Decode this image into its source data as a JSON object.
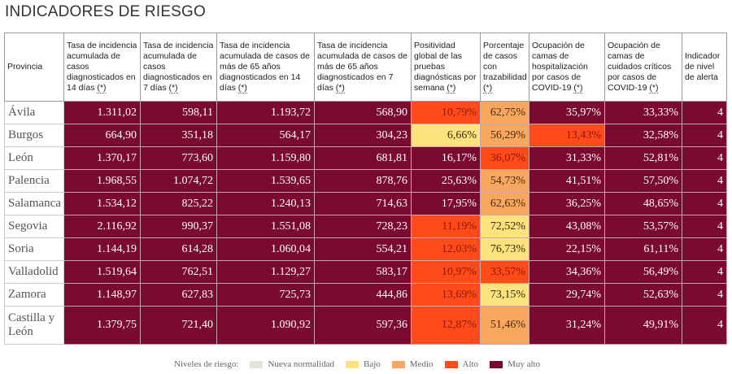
{
  "title": "INDICADORES DE RIESGO",
  "colors": {
    "nueva_normalidad": "#dfe6da",
    "bajo": "#fde27d",
    "medio": "#f8a85e",
    "alto": "#ff4a1a",
    "muy_alto": "#7b0a30"
  },
  "headers": [
    {
      "text": "Provincia",
      "ast": ""
    },
    {
      "text": "Tasa de incidencia acumulada de casos diagnosticados en 14 días ",
      "ast": "(*)"
    },
    {
      "text": "Tasa de incidencia acumulada de casos diagnosticados en 7 días ",
      "ast": "(*)"
    },
    {
      "text": "Tasa de incidencia acumulada de casos de más de 65 años diagnosticados en 14 días ",
      "ast": "(*)"
    },
    {
      "text": "Tasa de incidencia acumulada de casos de más de 65 años diagnosticados en 7 días ",
      "ast": "(*)"
    },
    {
      "text": "Positividad global de las pruebas diagnósticas por semana ",
      "ast": "(*)"
    },
    {
      "text": "Porcentaje de casos con trazabilidad ",
      "ast": "(*)"
    },
    {
      "text": "Ocupación de camas de hospitalización por casos de COVID-19 ",
      "ast": "(*)"
    },
    {
      "text": "Ocupación de camas de cuidados críticos por casos de COVID-19 ",
      "ast": "(*)"
    },
    {
      "text": "Indicador de nivel de alerta",
      "ast": ""
    }
  ],
  "rows": [
    {
      "provincia": "Ávila",
      "values": [
        "1.311,02",
        "598,11",
        "1.193,72",
        "568,90",
        "10,79%",
        "62,75%",
        "35,97%",
        "33,33%",
        "4"
      ],
      "levels": [
        4,
        4,
        4,
        4,
        3,
        2,
        4,
        4,
        4
      ]
    },
    {
      "provincia": "Burgos",
      "values": [
        "664,90",
        "351,18",
        "564,17",
        "304,23",
        "6,66%",
        "56,29%",
        "13,43%",
        "32,58%",
        "4"
      ],
      "levels": [
        4,
        4,
        4,
        4,
        1,
        2,
        3,
        4,
        4
      ]
    },
    {
      "provincia": "León",
      "values": [
        "1.370,17",
        "773,60",
        "1.159,80",
        "681,81",
        "16,17%",
        "36,07%",
        "31,33%",
        "52,81%",
        "4"
      ],
      "levels": [
        4,
        4,
        4,
        4,
        4,
        3,
        4,
        4,
        4
      ]
    },
    {
      "provincia": "Palencia",
      "values": [
        "1.968,55",
        "1.074,72",
        "1.539,65",
        "878,76",
        "25,63%",
        "54,73%",
        "41,51%",
        "57,50%",
        "4"
      ],
      "levels": [
        4,
        4,
        4,
        4,
        4,
        2,
        4,
        4,
        4
      ]
    },
    {
      "provincia": "Salamanca",
      "values": [
        "1.534,12",
        "825,22",
        "1.240,13",
        "714,63",
        "17,95%",
        "62,63%",
        "36,25%",
        "48,65%",
        "4"
      ],
      "levels": [
        4,
        4,
        4,
        4,
        4,
        2,
        4,
        4,
        4
      ]
    },
    {
      "provincia": "Segovia",
      "values": [
        "2.116,92",
        "990,37",
        "1.551,08",
        "728,23",
        "11,19%",
        "72,52%",
        "43,08%",
        "53,57%",
        "4"
      ],
      "levels": [
        4,
        4,
        4,
        4,
        3,
        1,
        4,
        4,
        4
      ]
    },
    {
      "provincia": "Soria",
      "values": [
        "1.144,19",
        "614,28",
        "1.060,04",
        "554,21",
        "12,03%",
        "76,73%",
        "22,15%",
        "61,11%",
        "4"
      ],
      "levels": [
        4,
        4,
        4,
        4,
        3,
        1,
        4,
        4,
        4
      ]
    },
    {
      "provincia": "Valladolid",
      "values": [
        "1.519,64",
        "762,51",
        "1.129,27",
        "583,17",
        "10,97%",
        "33,57%",
        "34,36%",
        "56,49%",
        "4"
      ],
      "levels": [
        4,
        4,
        4,
        4,
        3,
        3,
        4,
        4,
        4
      ]
    },
    {
      "provincia": "Zamora",
      "values": [
        "1.148,97",
        "627,83",
        "725,73",
        "444,86",
        "13,69%",
        "73,15%",
        "29,74%",
        "52,63%",
        "4"
      ],
      "levels": [
        4,
        4,
        4,
        4,
        3,
        1,
        4,
        4,
        4
      ]
    },
    {
      "provincia": "Castilla y León",
      "values": [
        "1.379,75",
        "721,40",
        "1.090,92",
        "597,36",
        "12,87%",
        "51,46%",
        "31,24%",
        "49,91%",
        "4"
      ],
      "levels": [
        4,
        4,
        4,
        4,
        3,
        2,
        4,
        4,
        4
      ]
    }
  ],
  "legend": {
    "label": "Niveles de riesgo:",
    "items": [
      {
        "label": "Nueva normalidad",
        "color": "#dfe6da"
      },
      {
        "label": "Bajo",
        "color": "#fde27d"
      },
      {
        "label": "Medio",
        "color": "#f8a85e"
      },
      {
        "label": "Alto",
        "color": "#ff4a1a"
      },
      {
        "label": "Muy alto",
        "color": "#7b0a30"
      }
    ]
  }
}
